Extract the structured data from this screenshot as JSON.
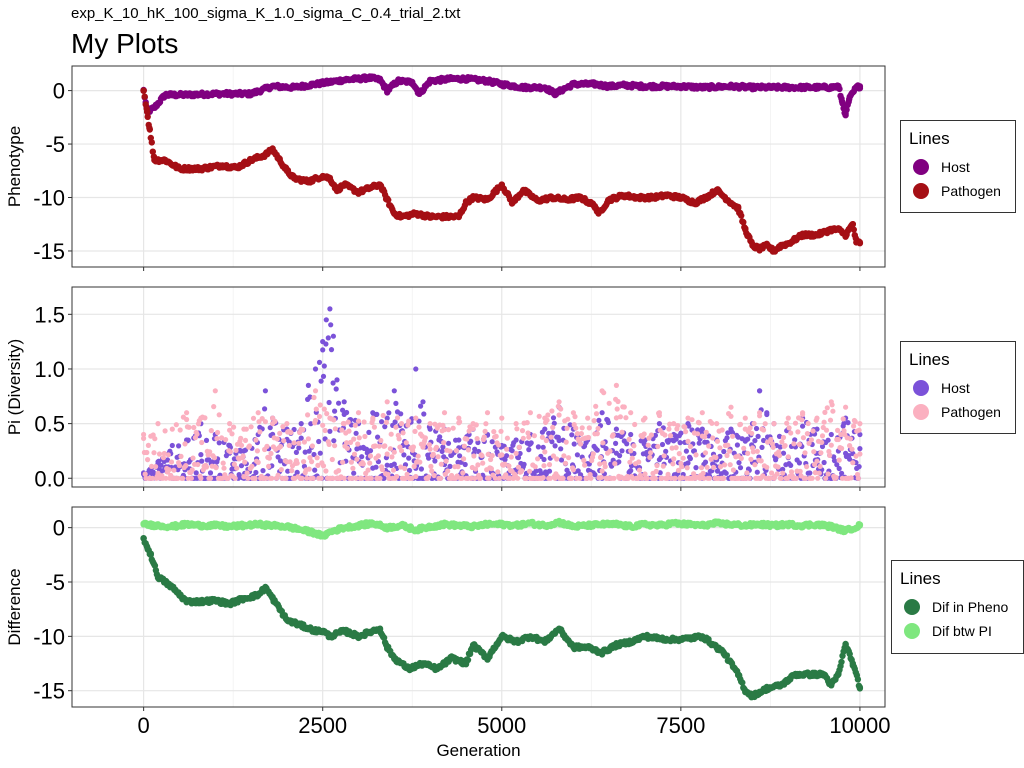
{
  "page": {
    "subtitle": "exp_K_10_hK_100_sigma_K_1.0_sigma_C_0.4_trial_2.txt",
    "title": "My Plots"
  },
  "chart_data": [
    {
      "type": "scatter",
      "ylabel": "Phenotype",
      "xlabel": "",
      "xlim": [
        -1000,
        10350
      ],
      "ylim": [
        -16.5,
        2.3
      ],
      "xticks": [
        0,
        2500,
        5000,
        7500,
        10000
      ],
      "yticks": [
        0,
        -5,
        -10,
        -15
      ],
      "ytick_labels": [
        "0",
        "-5",
        "-10",
        "-15"
      ],
      "grid": true,
      "legend": {
        "title": "Lines",
        "position": "right",
        "entries": [
          {
            "label": "Host",
            "color": "#800080"
          },
          {
            "label": "Pathogen",
            "color": "#A50F15"
          }
        ]
      },
      "series": [
        {
          "name": "Host",
          "color": "#800080",
          "x": [
            0,
            50,
            150,
            300,
            600,
            1000,
            1500,
            1800,
            2100,
            2500,
            2800,
            3000,
            3150,
            3300,
            3400,
            3550,
            3750,
            3850,
            4000,
            4300,
            4500,
            4800,
            5000,
            5300,
            5600,
            5750,
            5850,
            6000,
            6300,
            6500,
            6700,
            7000,
            7500,
            7800,
            8200,
            8500,
            9000,
            9400,
            9600,
            9700,
            9750,
            9800,
            9850,
            9950,
            10000
          ],
          "y": [
            0,
            -2.0,
            -1.6,
            -0.4,
            -0.4,
            -0.3,
            -0.3,
            0.4,
            0.3,
            0.7,
            1.0,
            1.1,
            1.2,
            1.0,
            0.0,
            0.9,
            0.8,
            -0.3,
            0.9,
            1.1,
            1.1,
            0.9,
            0.6,
            0.3,
            0.3,
            -0.3,
            0.1,
            0.6,
            0.6,
            0.4,
            0.5,
            0.4,
            0.4,
            0.3,
            0.4,
            0.3,
            0.3,
            0.3,
            0.3,
            0.4,
            -1.0,
            -2.3,
            -0.8,
            0.3,
            0.4
          ]
        },
        {
          "name": "Pathogen",
          "color": "#A50F15",
          "x": [
            0,
            50,
            80,
            150,
            300,
            500,
            800,
            1100,
            1300,
            1500,
            1700,
            1800,
            1900,
            2000,
            2100,
            2300,
            2500,
            2600,
            2700,
            2800,
            3000,
            3200,
            3300,
            3400,
            3500,
            3600,
            3800,
            4000,
            4200,
            4400,
            4500,
            4600,
            4800,
            5000,
            5150,
            5300,
            5500,
            5700,
            5900,
            6100,
            6300,
            6350,
            6500,
            6700,
            6900,
            7100,
            7300,
            7500,
            7700,
            7900,
            8000,
            8200,
            8300,
            8400,
            8500,
            8600,
            8700,
            8800,
            8900,
            9000,
            9200,
            9400,
            9600,
            9700,
            9800,
            9900,
            9950,
            10000
          ],
          "y": [
            0,
            -2.0,
            -3.5,
            -6.5,
            -6.5,
            -7.3,
            -7.3,
            -7.0,
            -7.2,
            -6.5,
            -6.0,
            -5.5,
            -6.5,
            -7.5,
            -8.2,
            -8.5,
            -8.0,
            -8.2,
            -9.3,
            -8.8,
            -9.5,
            -9.0,
            -8.8,
            -10.2,
            -11.5,
            -11.8,
            -11.5,
            -11.8,
            -11.8,
            -11.8,
            -10.5,
            -10.0,
            -10.2,
            -8.8,
            -10.5,
            -9.3,
            -10.3,
            -10.0,
            -10.2,
            -10.0,
            -10.8,
            -11.5,
            -10.2,
            -9.8,
            -10.0,
            -10.0,
            -9.8,
            -10.0,
            -10.5,
            -9.8,
            -9.3,
            -10.5,
            -11.0,
            -13.0,
            -14.5,
            -14.8,
            -14.5,
            -15.0,
            -14.5,
            -14.3,
            -13.5,
            -13.5,
            -13.0,
            -13.0,
            -13.5,
            -12.5,
            -14.2,
            -14.2
          ]
        }
      ]
    },
    {
      "type": "scatter",
      "ylabel": "Pi (Diversity)",
      "xlabel": "",
      "xlim": [
        -1000,
        10350
      ],
      "ylim": [
        -0.08,
        1.75
      ],
      "xticks": [
        0,
        2500,
        5000,
        7500,
        10000
      ],
      "yticks": [
        0,
        0.5,
        1.0,
        1.5
      ],
      "ytick_labels": [
        "0.0",
        "0.5",
        "1.0",
        "1.5"
      ],
      "grid": true,
      "legend": {
        "title": "Lines",
        "position": "right",
        "entries": [
          {
            "label": "Host",
            "color": "#7B52D9"
          },
          {
            "label": "Pathogen",
            "color": "#FBB0C0"
          }
        ]
      },
      "series": [
        {
          "name": "Host",
          "color": "#7B52D9",
          "x": [
            0,
            200,
            400,
            600,
            800,
            1000,
            1200,
            1400,
            1600,
            1700,
            1800,
            2000,
            2200,
            2300,
            2400,
            2500,
            2550,
            2600,
            2650,
            2700,
            2800,
            3000,
            3200,
            3400,
            3500,
            3700,
            3800,
            3900,
            4000,
            4200,
            4400,
            4600,
            4800,
            5000,
            5200,
            5400,
            5600,
            5800,
            6000,
            6200,
            6400,
            6600,
            6800,
            7000,
            7200,
            7400,
            7600,
            7800,
            8000,
            8200,
            8400,
            8500,
            8600,
            8700,
            8800,
            9000,
            9200,
            9400,
            9600,
            9800,
            10000
          ],
          "y": [
            0.05,
            0.15,
            0.3,
            0.35,
            0.5,
            0.4,
            0.3,
            0.25,
            0.4,
            0.8,
            0.55,
            0.45,
            0.5,
            0.85,
            1.0,
            1.25,
            1.45,
            1.55,
            1.3,
            0.9,
            0.7,
            0.5,
            0.6,
            0.55,
            0.8,
            0.5,
            1.0,
            0.7,
            0.45,
            0.45,
            0.35,
            0.45,
            0.4,
            0.3,
            0.35,
            0.4,
            0.45,
            0.65,
            0.45,
            0.35,
            0.6,
            0.45,
            0.4,
            0.35,
            0.5,
            0.4,
            0.5,
            0.45,
            0.35,
            0.45,
            0.35,
            0.5,
            0.8,
            0.6,
            0.5,
            0.45,
            0.55,
            0.45,
            0.4,
            0.55,
            0.4
          ]
        },
        {
          "name": "Pathogen",
          "color": "#FBB0C0",
          "x": [
            0,
            200,
            400,
            600,
            800,
            1000,
            1200,
            1400,
            1600,
            1800,
            2000,
            2200,
            2400,
            2600,
            2800,
            3000,
            3200,
            3400,
            3600,
            3800,
            4000,
            4200,
            4400,
            4600,
            4800,
            5000,
            5200,
            5400,
            5600,
            5800,
            6000,
            6200,
            6400,
            6600,
            6800,
            7000,
            7200,
            7400,
            7600,
            7800,
            8000,
            8200,
            8400,
            8600,
            8800,
            9000,
            9200,
            9400,
            9600,
            9800,
            10000
          ],
          "y": [
            0.4,
            0.5,
            0.45,
            0.6,
            0.55,
            0.8,
            0.5,
            0.45,
            0.6,
            0.55,
            0.5,
            0.45,
            0.8,
            0.55,
            0.5,
            0.6,
            0.55,
            0.7,
            0.5,
            0.55,
            0.5,
            0.6,
            0.55,
            0.5,
            0.6,
            0.55,
            0.5,
            0.6,
            0.55,
            0.7,
            0.6,
            0.55,
            0.8,
            0.85,
            0.6,
            0.55,
            0.6,
            0.5,
            0.55,
            0.6,
            0.5,
            0.65,
            0.55,
            0.6,
            0.5,
            0.55,
            0.6,
            0.55,
            0.7,
            0.65,
            0.5
          ]
        }
      ]
    },
    {
      "type": "scatter",
      "ylabel": "Difference",
      "xlabel": "Generation",
      "xlim": [
        -1000,
        10350
      ],
      "ylim": [
        -16.5,
        1.9
      ],
      "xticks": [
        0,
        2500,
        5000,
        7500,
        10000
      ],
      "xtick_labels": [
        "0",
        "2500",
        "5000",
        "7500",
        "10000"
      ],
      "yticks": [
        0,
        -5,
        -10,
        -15
      ],
      "ytick_labels": [
        "0",
        "-5",
        "-10",
        "-15"
      ],
      "grid": true,
      "legend": {
        "title": "Lines",
        "position": "right",
        "entries": [
          {
            "label": "Dif in Pheno",
            "color": "#2A7A45"
          },
          {
            "label": "Dif btw PI",
            "color": "#7FE77F"
          }
        ]
      },
      "series": [
        {
          "name": "Dif in Pheno",
          "color": "#2A7A45",
          "x": [
            0,
            50,
            100,
            200,
            400,
            600,
            800,
            1000,
            1200,
            1400,
            1600,
            1700,
            1800,
            1900,
            2000,
            2200,
            2400,
            2500,
            2600,
            2800,
            3000,
            3200,
            3300,
            3400,
            3500,
            3700,
            3900,
            4100,
            4300,
            4500,
            4600,
            4800,
            5000,
            5200,
            5400,
            5600,
            5800,
            6000,
            6200,
            6400,
            6600,
            6800,
            7000,
            7200,
            7400,
            7600,
            7800,
            8100,
            8300,
            8400,
            8500,
            8700,
            8900,
            9100,
            9300,
            9500,
            9600,
            9700,
            9800,
            9900,
            10000
          ],
          "y": [
            -1.0,
            -1.8,
            -2.5,
            -4.5,
            -5.5,
            -6.8,
            -6.8,
            -6.7,
            -7.0,
            -6.5,
            -6.2,
            -5.5,
            -6.5,
            -7.5,
            -8.5,
            -9.0,
            -9.5,
            -9.5,
            -10.0,
            -9.5,
            -10.0,
            -9.5,
            -9.3,
            -11.0,
            -12.0,
            -13.0,
            -12.5,
            -13.0,
            -12.0,
            -12.5,
            -10.8,
            -12.0,
            -10.0,
            -10.5,
            -10.0,
            -10.5,
            -9.3,
            -11.0,
            -11.0,
            -11.5,
            -10.8,
            -10.5,
            -10.0,
            -10.2,
            -10.3,
            -10.2,
            -10.0,
            -11.5,
            -13.5,
            -15.0,
            -15.5,
            -14.8,
            -14.5,
            -13.5,
            -13.5,
            -13.5,
            -14.5,
            -13.5,
            -10.7,
            -12.5,
            -14.7
          ]
        },
        {
          "name": "Dif btw PI",
          "color": "#7FE77F",
          "x": [
            0,
            200,
            400,
            600,
            800,
            1000,
            1200,
            1400,
            1600,
            1800,
            2000,
            2200,
            2400,
            2500,
            2600,
            2800,
            3000,
            3200,
            3400,
            3600,
            3800,
            4000,
            4200,
            4400,
            4600,
            4800,
            5000,
            5200,
            5400,
            5600,
            5800,
            6000,
            6200,
            6400,
            6600,
            6800,
            7000,
            7200,
            7400,
            7600,
            7800,
            8000,
            8200,
            8400,
            8600,
            8800,
            9000,
            9200,
            9400,
            9600,
            9800,
            10000
          ],
          "y": [
            0.3,
            0.2,
            0.1,
            0.3,
            0.2,
            0.2,
            0.1,
            0.2,
            0.3,
            0.2,
            0.1,
            -0.2,
            -0.5,
            -0.8,
            -0.4,
            0.0,
            0.2,
            0.4,
            0.0,
            0.2,
            -0.2,
            0.1,
            0.3,
            0.2,
            0.1,
            0.3,
            0.3,
            0.2,
            0.4,
            0.2,
            0.5,
            0.1,
            0.2,
            0.3,
            0.3,
            0.1,
            0.3,
            0.2,
            0.4,
            0.3,
            0.2,
            0.4,
            0.3,
            0.2,
            0.3,
            0.2,
            0.3,
            0.2,
            0.3,
            0.1,
            -0.3,
            0.2
          ]
        }
      ]
    }
  ]
}
